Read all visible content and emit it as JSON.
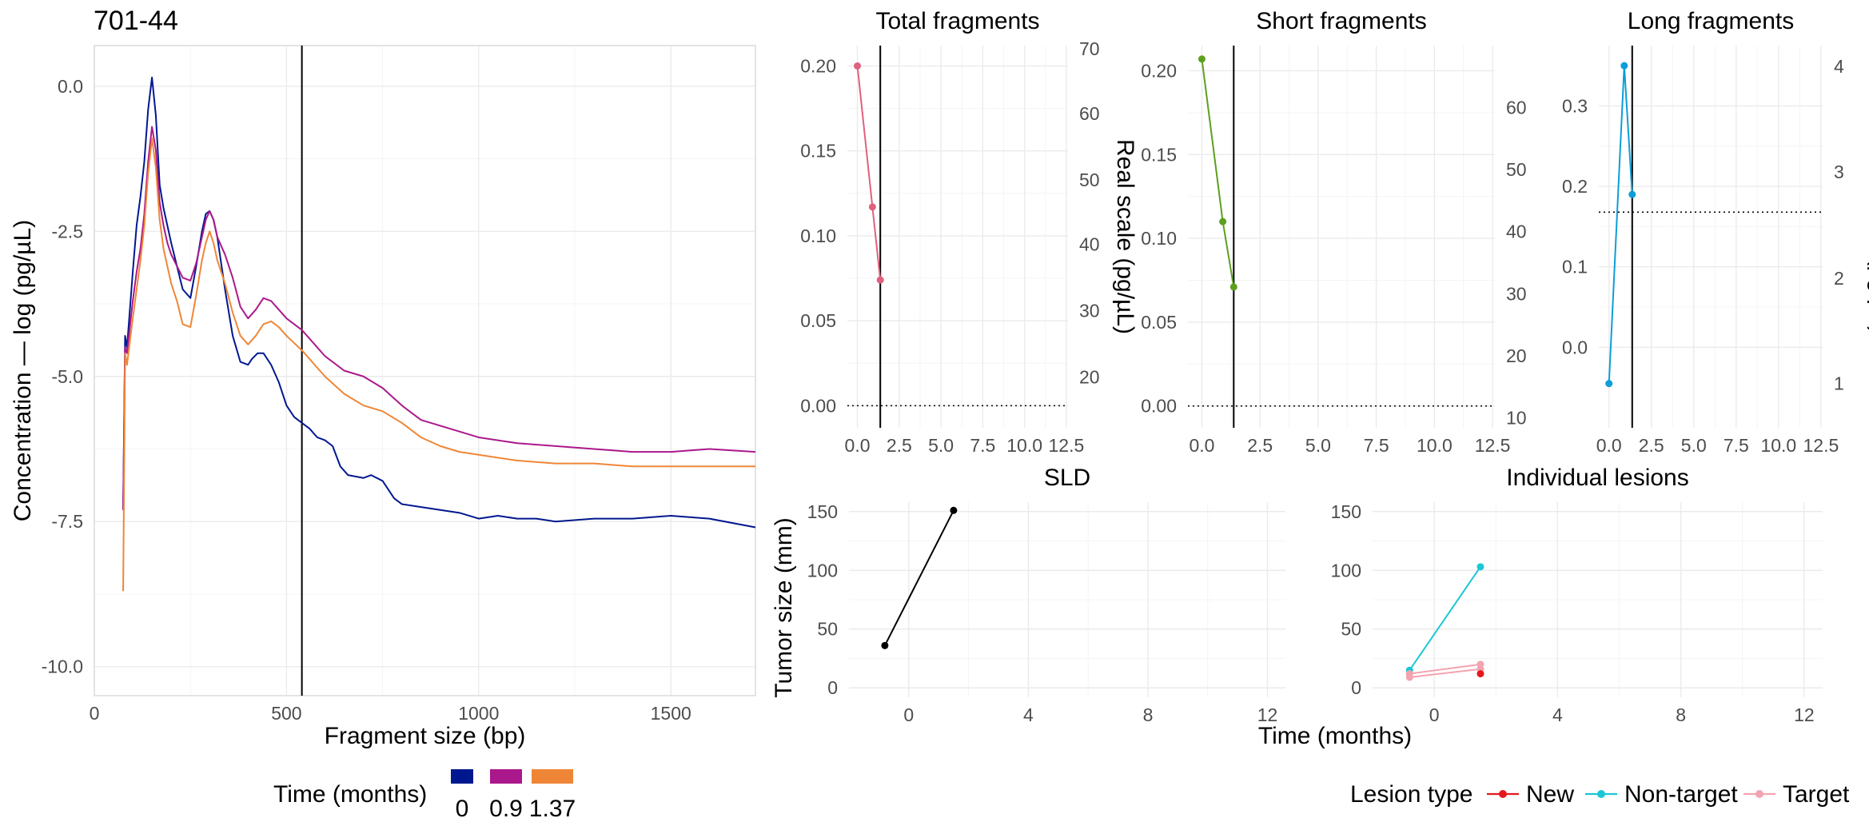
{
  "figure": {
    "main_title": "701-44",
    "time_legend_title": "Time (months)",
    "lesion_legend_title": "Lesion type",
    "time_axis_title": "Time (months)",
    "tumor_axis_title": "Tumor size (mm)"
  },
  "chart_data": [
    {
      "id": "fragment",
      "type": "line",
      "xlabel": "Fragment size (bp)",
      "ylabel": "Concentration — log (pg/µL)",
      "xlim": [
        0,
        1720
      ],
      "ylim": [
        -10.5,
        0.7
      ],
      "xticks": [
        0,
        500,
        1000,
        1500
      ],
      "yticks": [
        0.0,
        -2.5,
        -5.0,
        -7.5,
        -10.0
      ],
      "ytick_labels": [
        "0.0",
        "-2.5",
        "-5.0",
        "-7.5",
        "-10.0"
      ],
      "vline": 540,
      "series": [
        {
          "name": "0",
          "color": "#00188F",
          "x": [
            75,
            80,
            85,
            100,
            110,
            120,
            130,
            140,
            150,
            160,
            170,
            180,
            190,
            200,
            215,
            230,
            250,
            265,
            280,
            290,
            300,
            310,
            320,
            340,
            360,
            380,
            400,
            410,
            425,
            440,
            460,
            480,
            500,
            520,
            540,
            560,
            580,
            600,
            620,
            640,
            660,
            700,
            720,
            750,
            780,
            800,
            850,
            900,
            950,
            1000,
            1050,
            1100,
            1150,
            1200,
            1300,
            1400,
            1500,
            1600,
            1720
          ],
          "y": [
            -7.3,
            -4.3,
            -4.5,
            -3.2,
            -2.4,
            -1.9,
            -1.3,
            -0.4,
            0.15,
            -0.5,
            -1.7,
            -2.1,
            -2.4,
            -2.7,
            -3.1,
            -3.5,
            -3.65,
            -3.1,
            -2.5,
            -2.2,
            -2.15,
            -2.3,
            -2.6,
            -3.5,
            -4.3,
            -4.75,
            -4.8,
            -4.7,
            -4.6,
            -4.6,
            -4.8,
            -5.1,
            -5.5,
            -5.7,
            -5.8,
            -5.9,
            -6.05,
            -6.1,
            -6.2,
            -6.55,
            -6.7,
            -6.75,
            -6.7,
            -6.8,
            -7.1,
            -7.2,
            -7.25,
            -7.3,
            -7.35,
            -7.45,
            -7.4,
            -7.45,
            -7.45,
            -7.5,
            -7.45,
            -7.45,
            -7.4,
            -7.45,
            -7.6
          ]
        },
        {
          "name": "0.9",
          "color": "#AB188C",
          "x": [
            75,
            80,
            85,
            100,
            110,
            120,
            130,
            140,
            150,
            160,
            170,
            180,
            190,
            200,
            215,
            230,
            250,
            265,
            280,
            290,
            300,
            310,
            320,
            340,
            360,
            380,
            400,
            420,
            440,
            460,
            480,
            500,
            540,
            580,
            600,
            650,
            700,
            750,
            800,
            850,
            900,
            950,
            1000,
            1100,
            1200,
            1300,
            1400,
            1500,
            1600,
            1720
          ],
          "y": [
            -7.3,
            -4.5,
            -4.6,
            -3.7,
            -3.2,
            -2.8,
            -2.2,
            -1.3,
            -0.7,
            -1.1,
            -2.0,
            -2.4,
            -2.7,
            -2.9,
            -3.1,
            -3.3,
            -3.35,
            -3.05,
            -2.6,
            -2.3,
            -2.15,
            -2.3,
            -2.6,
            -2.9,
            -3.3,
            -3.8,
            -4.0,
            -3.85,
            -3.65,
            -3.7,
            -3.85,
            -4.0,
            -4.2,
            -4.5,
            -4.65,
            -4.9,
            -5.0,
            -5.2,
            -5.5,
            -5.75,
            -5.85,
            -5.95,
            -6.05,
            -6.15,
            -6.2,
            -6.25,
            -6.3,
            -6.3,
            -6.25,
            -6.3
          ]
        },
        {
          "name": "1.37",
          "color": "#EF8637",
          "x": [
            75,
            80,
            85,
            100,
            110,
            120,
            130,
            140,
            150,
            160,
            170,
            180,
            190,
            200,
            215,
            230,
            250,
            265,
            280,
            290,
            300,
            310,
            320,
            340,
            360,
            380,
            400,
            420,
            440,
            460,
            480,
            500,
            540,
            580,
            600,
            650,
            700,
            750,
            800,
            850,
            900,
            950,
            1000,
            1100,
            1200,
            1300,
            1400,
            1500,
            1600,
            1720
          ],
          "y": [
            -8.7,
            -4.6,
            -4.8,
            -4.0,
            -3.5,
            -3.0,
            -2.4,
            -1.5,
            -0.9,
            -1.4,
            -2.3,
            -2.8,
            -3.1,
            -3.4,
            -3.7,
            -4.1,
            -4.15,
            -3.6,
            -3.0,
            -2.7,
            -2.5,
            -2.7,
            -3.0,
            -3.4,
            -3.9,
            -4.3,
            -4.45,
            -4.3,
            -4.1,
            -4.05,
            -4.15,
            -4.3,
            -4.55,
            -4.85,
            -5.0,
            -5.3,
            -5.5,
            -5.6,
            -5.8,
            -6.05,
            -6.2,
            -6.3,
            -6.35,
            -6.45,
            -6.5,
            -6.5,
            -6.55,
            -6.55,
            -6.55,
            -6.55
          ]
        }
      ]
    },
    {
      "id": "total",
      "type": "line",
      "title": "Total fragments",
      "y2label": "Real scale (pg/µL)",
      "xlim": [
        -0.6,
        12.6
      ],
      "ylim": [
        -0.013,
        0.212
      ],
      "xticks": [
        0,
        2.5,
        5,
        7.5,
        10,
        12.5
      ],
      "xtick_labels": [
        "0.0",
        "2.5",
        "5.0",
        "7.5",
        "10.0",
        "12.5"
      ],
      "yticks": [
        0,
        0.05,
        0.1,
        0.15,
        0.2
      ],
      "ytick_labels": [
        "0.00",
        "0.05",
        "0.10",
        "0.15",
        "0.20"
      ],
      "y2ticks": [
        20,
        30,
        40,
        50,
        60,
        70
      ],
      "y2_data_at": [
        0.017,
        0.056,
        0.095,
        0.133,
        0.172,
        0.21
      ],
      "vline": 1.37,
      "hline": 0,
      "series": [
        {
          "name": "Total",
          "color": "#E0607E",
          "x": [
            0,
            0.9,
            1.37
          ],
          "y": [
            0.2,
            0.117,
            0.074
          ]
        }
      ]
    },
    {
      "id": "short",
      "type": "line",
      "title": "Short fragments",
      "xlim": [
        -0.6,
        12.6
      ],
      "ylim": [
        -0.013,
        0.215
      ],
      "xticks": [
        0,
        2.5,
        5,
        7.5,
        10,
        12.5
      ],
      "xtick_labels": [
        "0.0",
        "2.5",
        "5.0",
        "7.5",
        "10.0",
        "12.5"
      ],
      "yticks": [
        0,
        0.05,
        0.1,
        0.15,
        0.2
      ],
      "ytick_labels": [
        "0.00",
        "0.05",
        "0.10",
        "0.15",
        "0.20"
      ],
      "y2ticks": [
        10,
        20,
        30,
        40,
        50,
        60
      ],
      "y2_data_at": [
        -0.007,
        0.03,
        0.067,
        0.104,
        0.141,
        0.178
      ],
      "vline": 1.37,
      "hline": 0,
      "series": [
        {
          "name": "Short",
          "color": "#5BA01E",
          "x": [
            0,
            0.9,
            1.37
          ],
          "y": [
            0.207,
            0.11,
            0.071
          ]
        }
      ]
    },
    {
      "id": "long",
      "type": "line",
      "title": "Long fragments",
      "y2label": "Real scale (pg/µL)",
      "xlim": [
        -0.6,
        12.6
      ],
      "ylim": [
        -0.1,
        0.375
      ],
      "xticks": [
        0,
        2.5,
        5,
        7.5,
        10,
        12.5
      ],
      "xtick_labels": [
        "0.0",
        "2.5",
        "5.0",
        "7.5",
        "10.0",
        "12.5"
      ],
      "yticks": [
        0,
        0.1,
        0.2,
        0.3
      ],
      "ytick_labels": [
        "0.0",
        "0.1",
        "0.2",
        "0.3"
      ],
      "y2ticks": [
        1,
        2,
        3,
        4
      ],
      "y2_data_at": [
        -0.045,
        0.086,
        0.218,
        0.349
      ],
      "vline": 1.37,
      "hline": 0.168,
      "series": [
        {
          "name": "Long",
          "color": "#0D9ED8",
          "x": [
            0,
            0.9,
            1.37
          ],
          "y": [
            -0.045,
            0.35,
            0.19
          ]
        }
      ]
    },
    {
      "id": "sld",
      "type": "line",
      "title": "SLD",
      "xlim": [
        -2,
        12.6
      ],
      "ylim": [
        -8,
        158
      ],
      "xticks": [
        0,
        4,
        8,
        12
      ],
      "yticks": [
        0,
        50,
        100,
        150
      ],
      "series": [
        {
          "name": "SLD",
          "color": "#000000",
          "x": [
            -0.8,
            1.5
          ],
          "y": [
            36,
            151
          ]
        }
      ]
    },
    {
      "id": "lesions",
      "type": "line",
      "title": "Individual lesions",
      "xlim": [
        -2,
        12.6
      ],
      "ylim": [
        -8,
        158
      ],
      "xticks": [
        0,
        4,
        8,
        12
      ],
      "yticks": [
        0,
        50,
        100,
        150
      ],
      "series": [
        {
          "name": "Non-target",
          "color": "#1BC6D6",
          "x": [
            -0.8,
            1.5
          ],
          "y": [
            15,
            103
          ]
        },
        {
          "name": "Target",
          "color": "#F4A3B0",
          "x": [
            -0.8,
            1.5
          ],
          "y": [
            12,
            20
          ]
        },
        {
          "name": "Target",
          "color": "#F4A3B0",
          "x": [
            -0.8,
            1.5
          ],
          "y": [
            9,
            16
          ]
        },
        {
          "name": "New",
          "color": "#E4191C",
          "x": [
            1.5
          ],
          "y": [
            12
          ]
        }
      ]
    }
  ],
  "legends": {
    "time": [
      {
        "label": "0",
        "color": "#00188F"
      },
      {
        "label": "0.9",
        "color": "#AB188C"
      },
      {
        "label": "1.37",
        "color": "#EF8637"
      }
    ],
    "lesion": [
      {
        "label": "New",
        "color": "#E4191C"
      },
      {
        "label": "Non-target",
        "color": "#1BC6D6"
      },
      {
        "label": "Target",
        "color": "#F4A3B0"
      }
    ]
  }
}
